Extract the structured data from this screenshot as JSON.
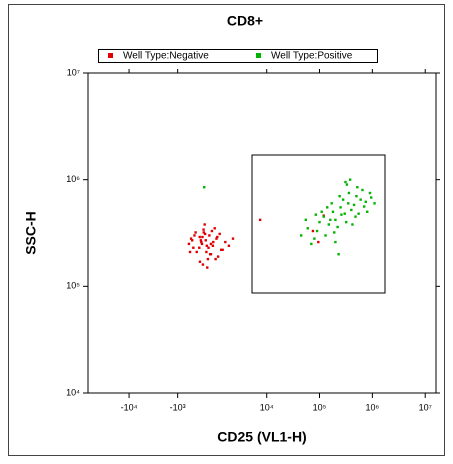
{
  "chart_data": {
    "type": "scatter",
    "title": "CD8+",
    "x_label": "CD25 (VL1-H)",
    "y_label": "SSC-H",
    "x_scale": "asinh",
    "y_scale": "log",
    "xlim": [
      -60000,
      16000000
    ],
    "ylim": [
      10000,
      10000000
    ],
    "xticks": [
      {
        "value": -10000,
        "label": "-10⁴"
      },
      {
        "value": -1000,
        "label": "-10³"
      },
      {
        "value": 10000,
        "label": "10⁴"
      },
      {
        "value": 100000,
        "label": "10⁵"
      },
      {
        "value": 1000000,
        "label": "10⁶"
      },
      {
        "value": 10000000,
        "label": "10⁷"
      }
    ],
    "yticks": [
      {
        "value": 10000,
        "label": "10⁴"
      },
      {
        "value": 100000,
        "label": "10⁵"
      },
      {
        "value": 1000000,
        "label": "10⁶"
      },
      {
        "value": 10000000,
        "label": "10⁷"
      }
    ],
    "legend": "top",
    "series": [
      {
        "name": "Well Type:Negative",
        "color": "#e00000",
        "x": [
          150,
          320,
          -200,
          600,
          900,
          250,
          -400,
          1200,
          450,
          80,
          700,
          -100,
          380,
          1500,
          220,
          520,
          -300,
          1000,
          60,
          800,
          350,
          -50,
          650,
          1800,
          420,
          180,
          950,
          -250,
          560,
          300,
          1300,
          90,
          720,
          -150,
          480,
          2200,
          260,
          850,
          130,
          400,
          -350,
          1100,
          600,
          200,
          7500,
          75000,
          120000,
          95000
        ],
        "y": [
          260000,
          310000,
          230000,
          200000,
          280000,
          340000,
          250000,
          220000,
          180000,
          290000,
          240000,
          320000,
          210000,
          260000,
          160000,
          300000,
          280000,
          190000,
          230000,
          350000,
          270000,
          210000,
          330000,
          240000,
          150000,
          250000,
          290000,
          270000,
          200000,
          380000,
          220000,
          170000,
          260000,
          300000,
          230000,
          280000,
          320000,
          180000,
          270000,
          240000,
          210000,
          310000,
          250000,
          290000,
          420000,
          330000,
          460000,
          260000
        ]
      },
      {
        "name": "Well Type:Positive",
        "color": "#00b400",
        "x": [
          45000,
          60000,
          80000,
          100000,
          120000,
          150000,
          180000,
          200000,
          250000,
          300000,
          350000,
          400000,
          500000,
          600000,
          700000,
          900000,
          1100000,
          70000,
          90000,
          130000,
          160000,
          220000,
          280000,
          330000,
          450000,
          550000,
          650000,
          800000,
          110000,
          140000,
          190000,
          240000,
          320000,
          380000,
          480000,
          750000,
          55000,
          85000,
          170000,
          260000,
          420000,
          520000,
          950000,
          230000,
          310000,
          360000,
          280,
          200000
        ],
        "y": [
          300000,
          350000,
          280000,
          400000,
          450000,
          380000,
          500000,
          420000,
          550000,
          480000,
          600000,
          520000,
          700000,
          650000,
          560000,
          750000,
          600000,
          250000,
          330000,
          300000,
          420000,
          360000,
          650000,
          900000,
          580000,
          480000,
          800000,
          500000,
          500000,
          550000,
          320000,
          700000,
          400000,
          1000000,
          450000,
          620000,
          420000,
          470000,
          600000,
          470000,
          380000,
          850000,
          680000,
          200000,
          950000,
          750000,
          850000,
          260000
        ]
      }
    ]
  }
}
